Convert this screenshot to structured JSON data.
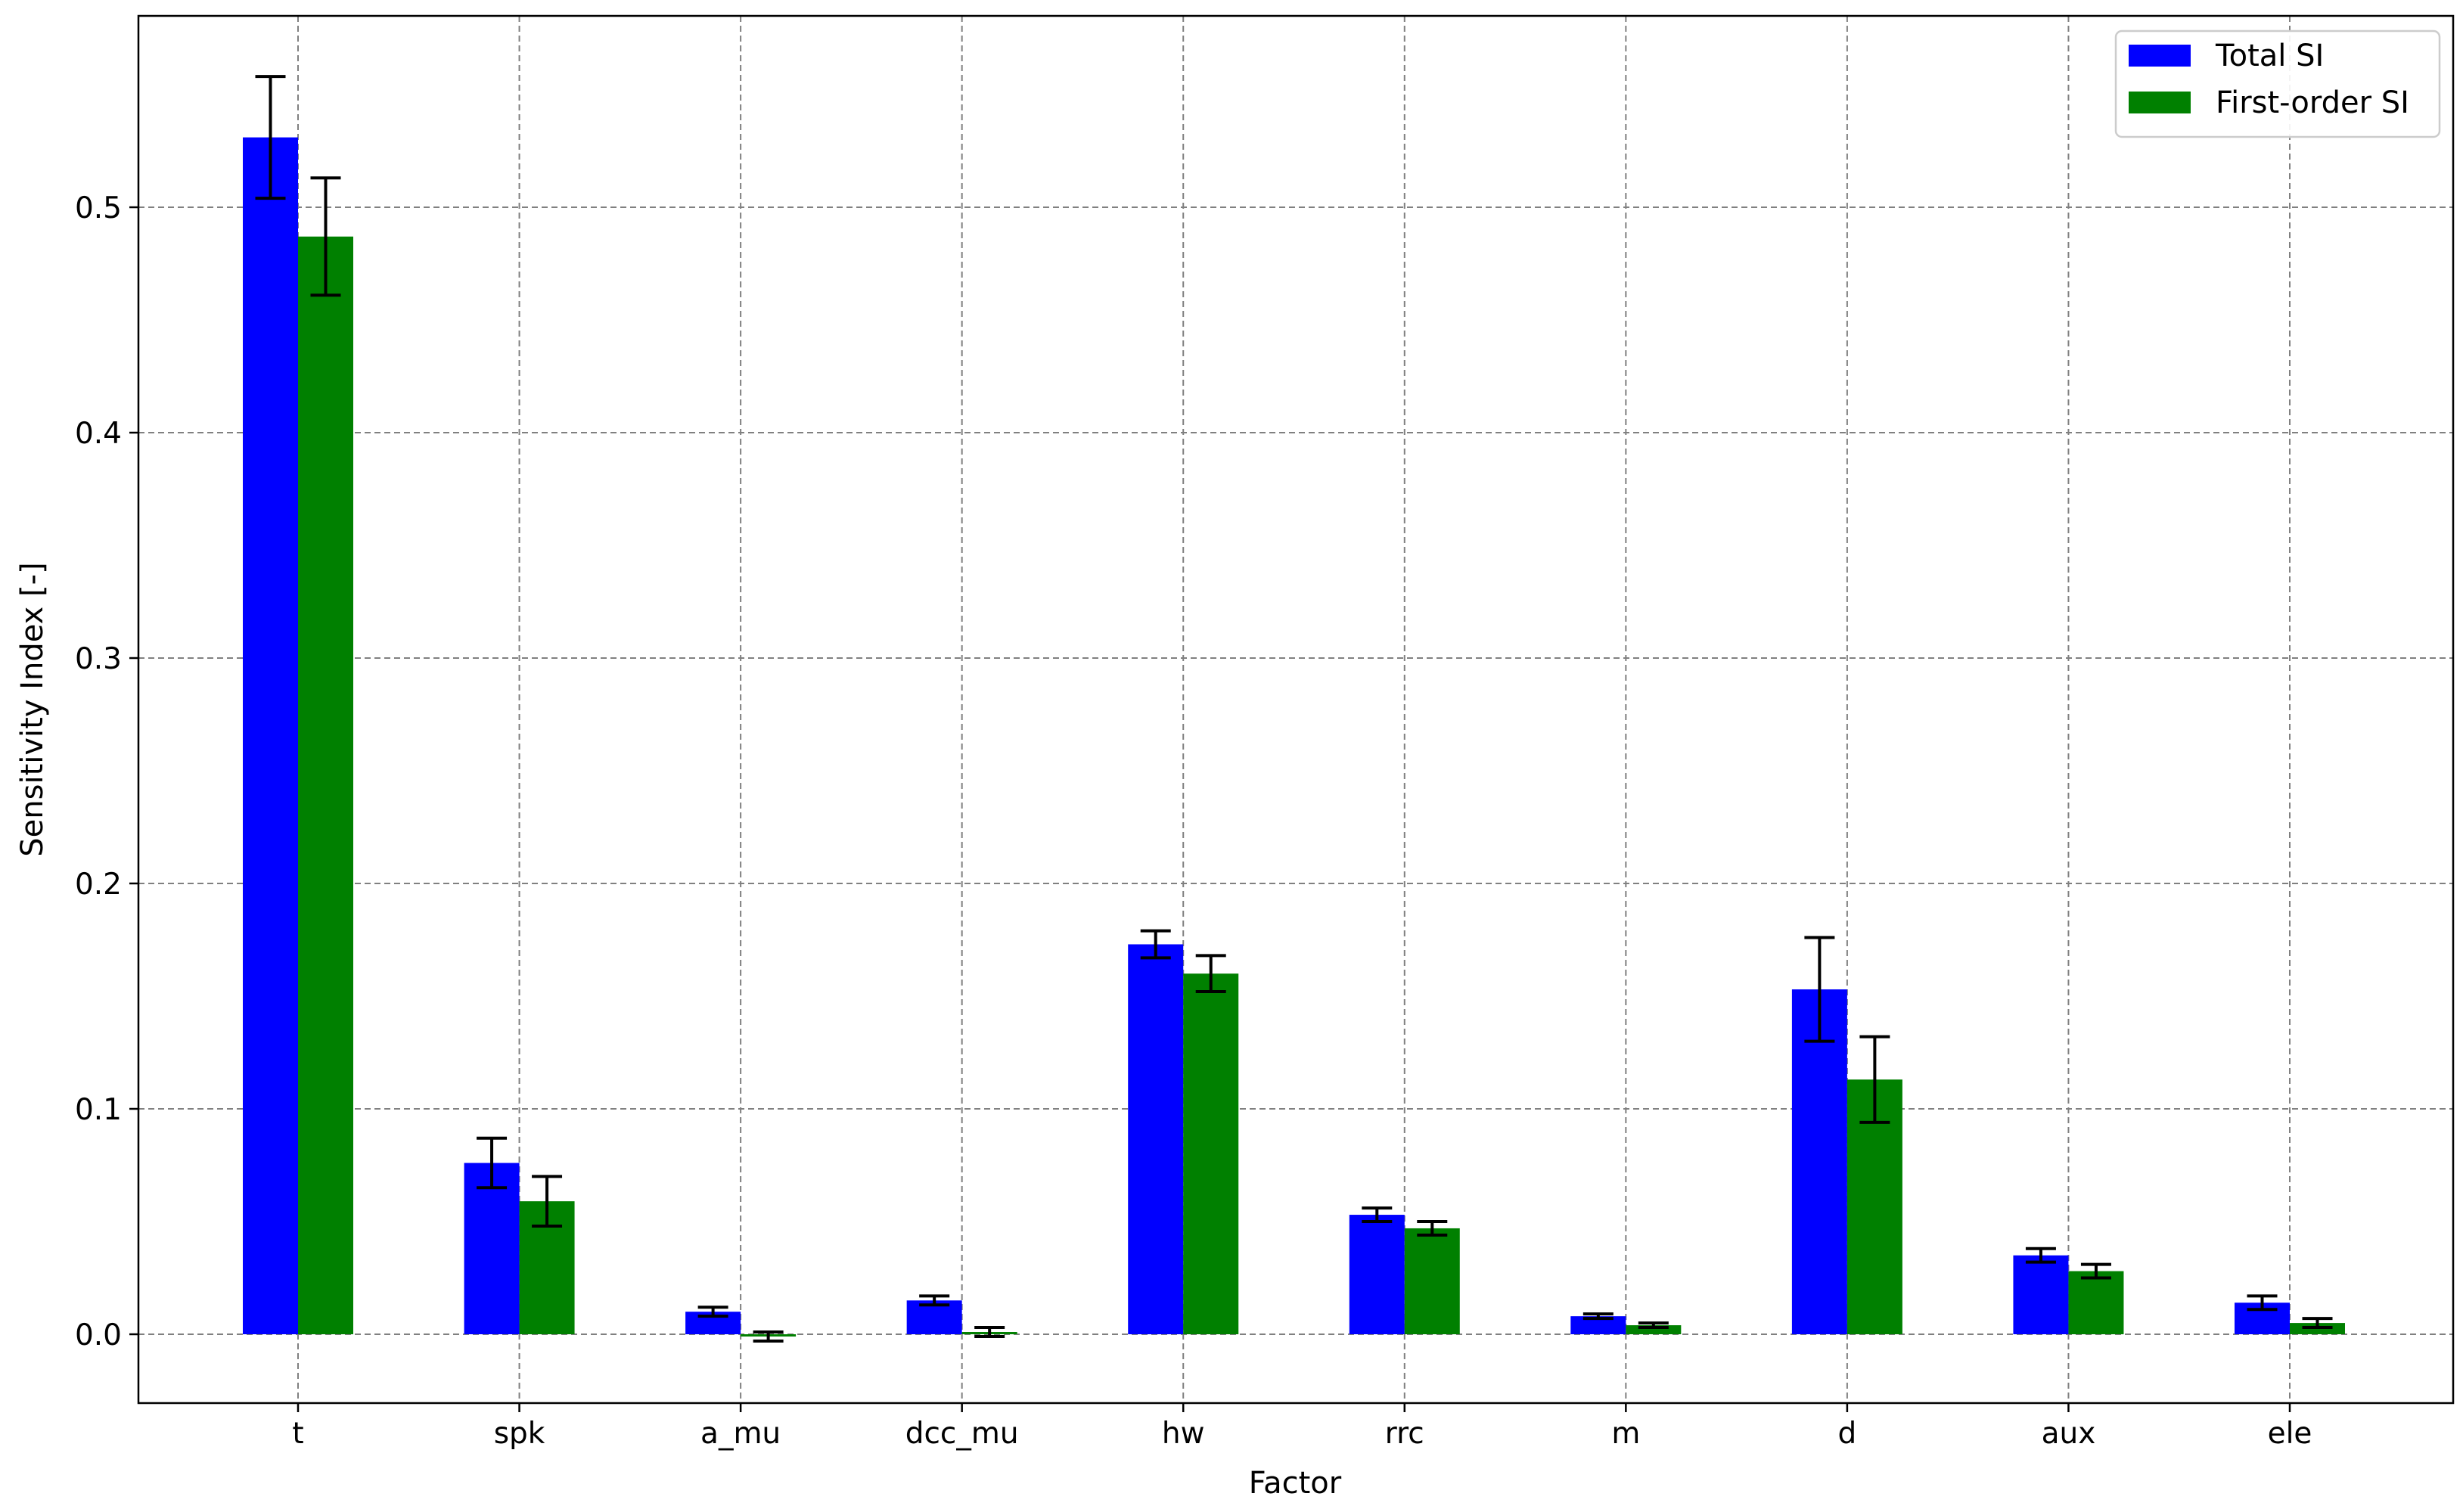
{
  "chart_data": {
    "type": "bar",
    "title": "",
    "xlabel": "Factor",
    "ylabel": "Sensitivity Index [-]",
    "categories": [
      "t",
      "spk",
      "a_mu",
      "dcc_mu",
      "hw",
      "rrc",
      "m",
      "d",
      "aux",
      "ele"
    ],
    "series": [
      {
        "name": "Total SI",
        "color": "#0000ff",
        "values": [
          0.531,
          0.076,
          0.01,
          0.015,
          0.173,
          0.053,
          0.008,
          0.153,
          0.035,
          0.014
        ],
        "errors": [
          0.027,
          0.011,
          0.002,
          0.002,
          0.006,
          0.003,
          0.001,
          0.023,
          0.003,
          0.003
        ]
      },
      {
        "name": "First-order SI",
        "color": "#008000",
        "values": [
          0.487,
          0.059,
          -0.001,
          0.001,
          0.16,
          0.047,
          0.004,
          0.113,
          0.028,
          0.005
        ],
        "errors": [
          0.026,
          0.011,
          0.002,
          0.002,
          0.008,
          0.003,
          0.001,
          0.019,
          0.003,
          0.002
        ]
      }
    ],
    "ylim": [
      -0.03,
      0.585
    ],
    "yticks": [
      "0.0",
      "0.1",
      "0.2",
      "0.3",
      "0.4",
      "0.5"
    ],
    "ytick_values": [
      0.0,
      0.1,
      0.2,
      0.3,
      0.4,
      0.5
    ],
    "grid": true,
    "legend_position": "top-right",
    "error_bars": true
  }
}
